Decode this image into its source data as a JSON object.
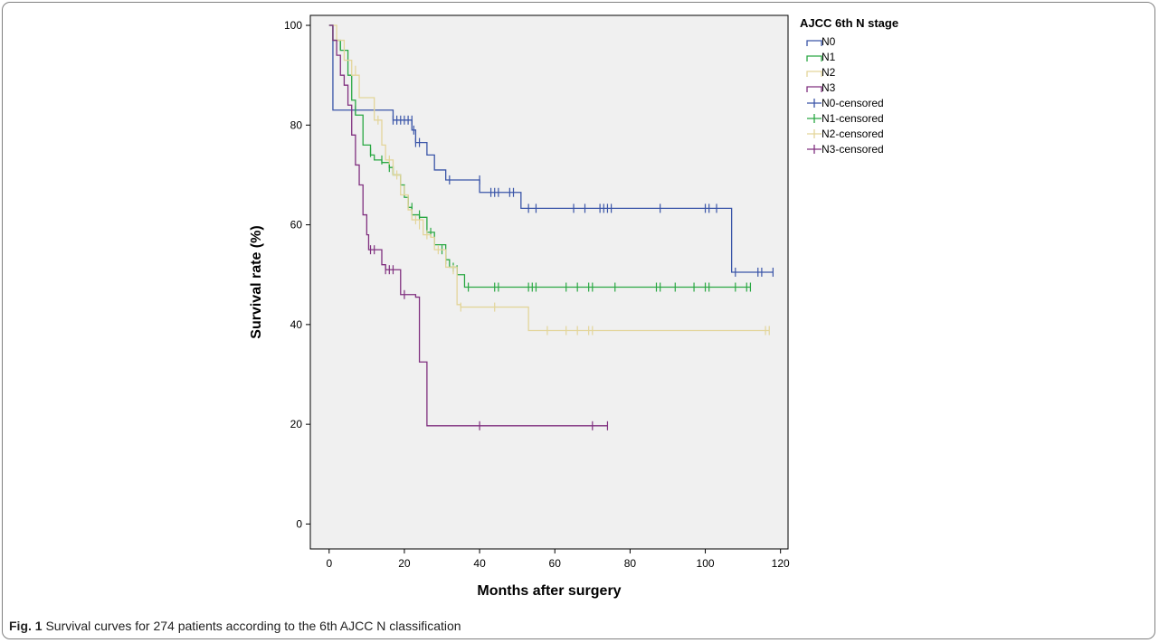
{
  "caption": {
    "label": "Fig. 1",
    "text": "Survival curves for 274 patients according to the 6th AJCC N classification"
  },
  "chart_data": {
    "type": "line",
    "step": true,
    "xlabel": "Months after surgery",
    "ylabel": "Survival rate (%)",
    "xlim": [
      -5,
      122
    ],
    "ylim": [
      -5,
      102
    ],
    "xticks": [
      0,
      20,
      40,
      60,
      80,
      100,
      120
    ],
    "yticks": [
      0,
      20,
      40,
      60,
      80,
      100
    ],
    "grid": false,
    "plot_background": "#f0f0f0",
    "legend": {
      "title": "AJCC 6th N stage",
      "placement": "right",
      "entries": [
        "N0",
        "N1",
        "N2",
        "N3",
        "N0-censored",
        "N1-censored",
        "N2-censored",
        "N3-censored"
      ]
    },
    "series": [
      {
        "name": "N0",
        "color": "#3a55a8",
        "steps": [
          [
            0,
            100
          ],
          [
            1,
            83
          ],
          [
            17,
            81
          ],
          [
            22,
            79
          ],
          [
            23,
            76.5
          ],
          [
            26,
            74
          ],
          [
            28,
            71
          ],
          [
            31,
            69
          ],
          [
            40,
            66.5
          ],
          [
            51,
            63.3
          ],
          [
            107,
            50.5
          ],
          [
            118,
            50.5
          ]
        ],
        "censored": [
          [
            7,
            83
          ],
          [
            17,
            81
          ],
          [
            18,
            81
          ],
          [
            19,
            81
          ],
          [
            20,
            81
          ],
          [
            21,
            81
          ],
          [
            22,
            81
          ],
          [
            22.5,
            79
          ],
          [
            23,
            76.5
          ],
          [
            24,
            76.5
          ],
          [
            32,
            69
          ],
          [
            40,
            69
          ],
          [
            43,
            66.5
          ],
          [
            44,
            66.5
          ],
          [
            45,
            66.5
          ],
          [
            48,
            66.5
          ],
          [
            49,
            66.5
          ],
          [
            53,
            63.3
          ],
          [
            55,
            63.3
          ],
          [
            65,
            63.3
          ],
          [
            68,
            63.3
          ],
          [
            72,
            63.3
          ],
          [
            73,
            63.3
          ],
          [
            74,
            63.3
          ],
          [
            75,
            63.3
          ],
          [
            88,
            63.3
          ],
          [
            100,
            63.3
          ],
          [
            101,
            63.3
          ],
          [
            103,
            63.3
          ],
          [
            108,
            50.5
          ],
          [
            114,
            50.5
          ],
          [
            115,
            50.5
          ],
          [
            118,
            50.5
          ]
        ]
      },
      {
        "name": "N1",
        "color": "#2aa843",
        "steps": [
          [
            0,
            100
          ],
          [
            1,
            97
          ],
          [
            3,
            95
          ],
          [
            5,
            90
          ],
          [
            6,
            85
          ],
          [
            7,
            82
          ],
          [
            9,
            76
          ],
          [
            11,
            74
          ],
          [
            12,
            73
          ],
          [
            14,
            72.5
          ],
          [
            16,
            71.5
          ],
          [
            17,
            70
          ],
          [
            19,
            68
          ],
          [
            20,
            65.5
          ],
          [
            21,
            63.5
          ],
          [
            22,
            62
          ],
          [
            24,
            61.5
          ],
          [
            26,
            58.5
          ],
          [
            28,
            56
          ],
          [
            31,
            53
          ],
          [
            32,
            51.5
          ],
          [
            34,
            50
          ],
          [
            36,
            47.5
          ],
          [
            112,
            47.5
          ]
        ],
        "censored": [
          [
            3,
            96
          ],
          [
            11,
            74.5
          ],
          [
            14,
            73
          ],
          [
            16,
            71.5
          ],
          [
            17,
            71
          ],
          [
            21,
            65
          ],
          [
            22,
            63.5
          ],
          [
            24,
            62
          ],
          [
            27,
            58.5
          ],
          [
            30,
            55
          ],
          [
            31,
            53
          ],
          [
            33,
            51.5
          ],
          [
            34,
            51
          ],
          [
            37,
            47.5
          ],
          [
            44,
            47.5
          ],
          [
            45,
            47.5
          ],
          [
            53,
            47.5
          ],
          [
            54,
            47.5
          ],
          [
            55,
            47.5
          ],
          [
            63,
            47.5
          ],
          [
            66,
            47.5
          ],
          [
            69,
            47.5
          ],
          [
            70,
            47.5
          ],
          [
            76,
            47.5
          ],
          [
            87,
            47.5
          ],
          [
            88,
            47.5
          ],
          [
            92,
            47.5
          ],
          [
            97,
            47.5
          ],
          [
            100,
            47.5
          ],
          [
            101,
            47.5
          ],
          [
            108,
            47.5
          ],
          [
            111,
            47.5
          ],
          [
            112,
            47.5
          ]
        ]
      },
      {
        "name": "N2",
        "color": "#e3d59a",
        "steps": [
          [
            0,
            100
          ],
          [
            2,
            97
          ],
          [
            4,
            93
          ],
          [
            6,
            90
          ],
          [
            8,
            85.5
          ],
          [
            12,
            81
          ],
          [
            14,
            76
          ],
          [
            15,
            73
          ],
          [
            17,
            70
          ],
          [
            19,
            66
          ],
          [
            21,
            63
          ],
          [
            22,
            61
          ],
          [
            25,
            58
          ],
          [
            27,
            57.5
          ],
          [
            28,
            55
          ],
          [
            31,
            51.5
          ],
          [
            34,
            44
          ],
          [
            35,
            43.5
          ],
          [
            53,
            38.8
          ],
          [
            117,
            38.8
          ]
        ],
        "censored": [
          [
            7,
            91
          ],
          [
            13,
            81
          ],
          [
            16,
            73
          ],
          [
            18,
            70
          ],
          [
            20,
            67
          ],
          [
            23,
            61
          ],
          [
            24,
            60
          ],
          [
            26,
            58
          ],
          [
            29,
            55
          ],
          [
            33,
            51
          ],
          [
            35,
            43.5
          ],
          [
            44,
            43.5
          ],
          [
            58,
            38.8
          ],
          [
            63,
            38.8
          ],
          [
            66,
            38.8
          ],
          [
            69,
            38.8
          ],
          [
            70,
            38.8
          ],
          [
            116,
            38.8
          ],
          [
            117,
            38.8
          ]
        ]
      },
      {
        "name": "N3",
        "color": "#80307f",
        "steps": [
          [
            0,
            100
          ],
          [
            1,
            97
          ],
          [
            2,
            94
          ],
          [
            3,
            90
          ],
          [
            4,
            88
          ],
          [
            5,
            84
          ],
          [
            6,
            78
          ],
          [
            7,
            72
          ],
          [
            8,
            68
          ],
          [
            9,
            62
          ],
          [
            10,
            58
          ],
          [
            10.5,
            55
          ],
          [
            14,
            52
          ],
          [
            15,
            51
          ],
          [
            19,
            46
          ],
          [
            23,
            45.5
          ],
          [
            24,
            32.5
          ],
          [
            26,
            19.7
          ],
          [
            74,
            19.7
          ]
        ],
        "censored": [
          [
            11,
            55
          ],
          [
            12,
            55
          ],
          [
            15,
            51
          ],
          [
            16,
            51
          ],
          [
            17,
            51
          ],
          [
            20,
            46
          ],
          [
            40,
            19.7
          ],
          [
            70,
            19.7
          ],
          [
            74,
            19.7
          ]
        ]
      }
    ]
  }
}
